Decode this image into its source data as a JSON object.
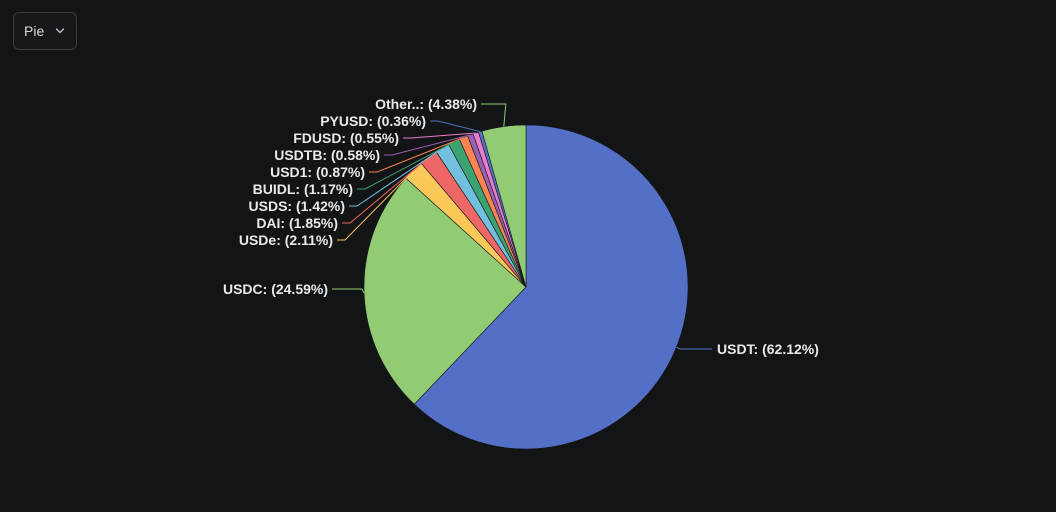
{
  "controls": {
    "chart_type_value": "Pie"
  },
  "chart_data": {
    "type": "pie",
    "title": "",
    "slices": [
      {
        "name": "USDT",
        "value": 62.12,
        "label": "USDT: (62.12%)",
        "color": "#5470c6"
      },
      {
        "name": "USDC",
        "value": 24.59,
        "label": "USDC: (24.59%)",
        "color": "#91cc75"
      },
      {
        "name": "USDe",
        "value": 2.11,
        "label": "USDe: (2.11%)",
        "color": "#fac858"
      },
      {
        "name": "DAI",
        "value": 1.85,
        "label": "DAI: (1.85%)",
        "color": "#ee6666"
      },
      {
        "name": "USDS",
        "value": 1.42,
        "label": "USDS: (1.42%)",
        "color": "#73c0de"
      },
      {
        "name": "BUIDL",
        "value": 1.17,
        "label": "BUIDL: (1.17%)",
        "color": "#3ba272"
      },
      {
        "name": "USD1",
        "value": 0.87,
        "label": "USD1: (0.87%)",
        "color": "#fc8452"
      },
      {
        "name": "USDTB",
        "value": 0.58,
        "label": "USDTB: (0.58%)",
        "color": "#9a60b4"
      },
      {
        "name": "FDUSD",
        "value": 0.55,
        "label": "FDUSD: (0.55%)",
        "color": "#ea7ccc"
      },
      {
        "name": "PYUSD",
        "value": 0.36,
        "label": "PYUSD: (0.36%)",
        "color": "#5470c6"
      },
      {
        "name": "Other..",
        "value": 4.38,
        "label": "Other..: (4.38%)",
        "color": "#91cc75"
      }
    ]
  }
}
